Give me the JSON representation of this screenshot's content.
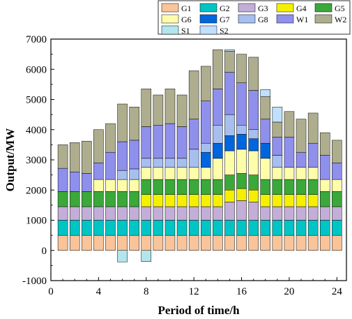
{
  "chart_data": {
    "type": "bar",
    "stacked": true,
    "xlabel": "Period of time/h",
    "ylabel": "Output/MW",
    "xlim": [
      0,
      24.8
    ],
    "ylim": [
      -1000,
      7000
    ],
    "xticks": [
      0,
      4,
      8,
      12,
      16,
      20,
      24
    ],
    "yticks": [
      -1000,
      0,
      1000,
      2000,
      3000,
      4000,
      5000,
      6000,
      7000
    ],
    "grid": false,
    "legend_position": "top-right",
    "x": [
      1,
      2,
      3,
      4,
      5,
      6,
      7,
      8,
      9,
      10,
      11,
      12,
      13,
      14,
      15,
      16,
      17,
      18,
      19,
      20,
      21,
      22,
      23,
      24
    ],
    "series": [
      {
        "name": "G1",
        "color": "#f9c49a",
        "values": [
          500,
          500,
          500,
          500,
          500,
          500,
          500,
          500,
          500,
          500,
          500,
          500,
          500,
          500,
          500,
          500,
          500,
          500,
          500,
          500,
          500,
          500,
          500,
          500
        ]
      },
      {
        "name": "G2",
        "color": "#00c5c5",
        "values": [
          500,
          500,
          500,
          500,
          500,
          500,
          500,
          500,
          500,
          500,
          500,
          500,
          500,
          500,
          500,
          500,
          500,
          500,
          500,
          500,
          500,
          500,
          500,
          500
        ]
      },
      {
        "name": "G3",
        "color": "#c3aed8",
        "values": [
          450,
          450,
          450,
          450,
          450,
          450,
          450,
          450,
          450,
          450,
          450,
          450,
          450,
          450,
          600,
          650,
          600,
          450,
          450,
          450,
          450,
          450,
          450,
          450
        ]
      },
      {
        "name": "G4",
        "color": "#f5f000",
        "values": [
          0,
          0,
          0,
          0,
          0,
          0,
          0,
          400,
          400,
          400,
          400,
          400,
          400,
          400,
          400,
          400,
          400,
          400,
          400,
          400,
          400,
          400,
          0,
          0
        ]
      },
      {
        "name": "G5",
        "color": "#3aa93a",
        "values": [
          500,
          500,
          500,
          500,
          500,
          500,
          500,
          500,
          500,
          500,
          500,
          500,
          500,
          500,
          500,
          500,
          500,
          500,
          500,
          500,
          500,
          500,
          500,
          500
        ]
      },
      {
        "name": "G6",
        "color": "#fdfdaa",
        "values": [
          0,
          0,
          0,
          400,
          400,
          400,
          400,
          400,
          400,
          400,
          400,
          400,
          400,
          700,
          800,
          800,
          800,
          700,
          400,
          400,
          400,
          400,
          400,
          400
        ]
      },
      {
        "name": "G7",
        "color": "#0066e0",
        "values": [
          0,
          0,
          0,
          0,
          0,
          0,
          0,
          0,
          0,
          0,
          0,
          0,
          500,
          500,
          500,
          500,
          400,
          500,
          0,
          0,
          0,
          0,
          0,
          0
        ]
      },
      {
        "name": "G8",
        "color": "#a6bfef",
        "values": [
          0,
          0,
          0,
          0,
          0,
          300,
          350,
          300,
          300,
          300,
          300,
          600,
          300,
          600,
          700,
          300,
          300,
          0,
          400,
          0,
          0,
          0,
          0,
          0
        ]
      },
      {
        "name": "W1",
        "color": "#8f8fec",
        "values": [
          770,
          650,
          600,
          550,
          900,
          950,
          950,
          1050,
          1100,
          1150,
          1050,
          1000,
          1400,
          1200,
          1400,
          1400,
          1300,
          800,
          600,
          1000,
          500,
          800,
          800,
          550
        ]
      },
      {
        "name": "W2",
        "color": "#aeae8f",
        "values": [
          780,
          970,
          1070,
          1100,
          950,
          1250,
          1100,
          1250,
          1000,
          1150,
          1050,
          1600,
          1150,
          1300,
          700,
          950,
          1100,
          750,
          500,
          850,
          1100,
          1000,
          750,
          750
        ]
      },
      {
        "name": "S1",
        "color": "#b2e5ec",
        "values": [
          0,
          0,
          0,
          0,
          0,
          -380,
          0,
          -370,
          0,
          0,
          0,
          0,
          0,
          0,
          0,
          0,
          0,
          0,
          0,
          0,
          0,
          0,
          0,
          0
        ]
      },
      {
        "name": "S2",
        "color": "#bfe0ff",
        "values": [
          0,
          0,
          0,
          0,
          0,
          0,
          0,
          0,
          0,
          0,
          0,
          0,
          0,
          0,
          50,
          0,
          0,
          230,
          500,
          0,
          0,
          0,
          0,
          0
        ]
      }
    ]
  }
}
